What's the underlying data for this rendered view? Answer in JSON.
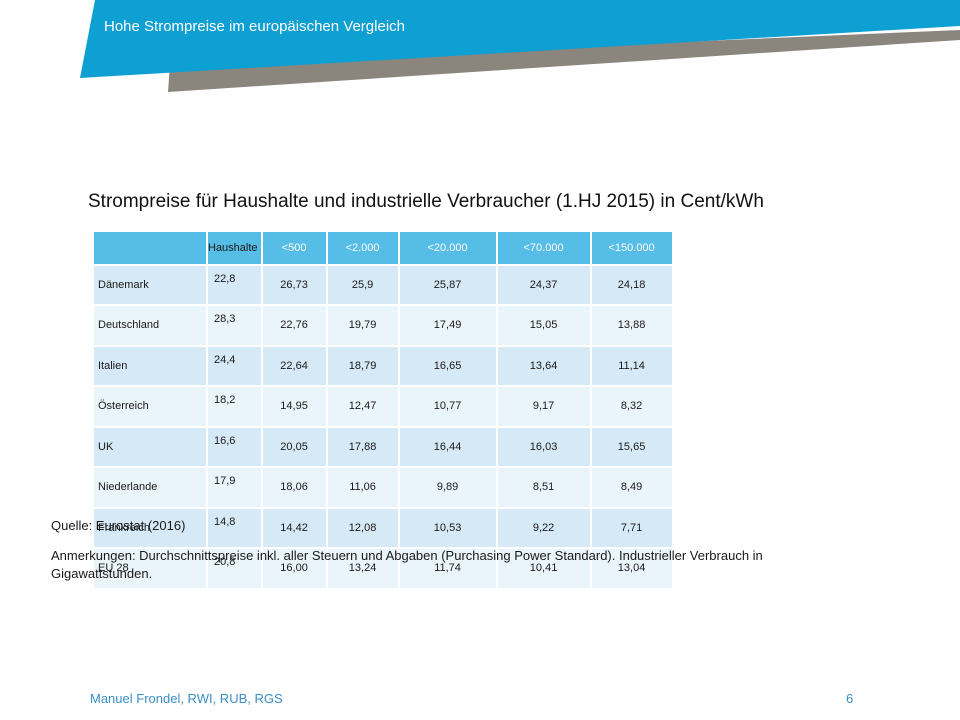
{
  "header": {
    "title": "Hohe Strompreise im europäischen Vergleich",
    "colors": {
      "blue": "#0e9fd3",
      "gray": "#8a857d"
    }
  },
  "heading": "Strompreise für Haushalte und industrielle Verbraucher (1.HJ 2015) in Cent/kWh",
  "table": {
    "header": [
      "",
      "Haushalte",
      "<500",
      "<2.000",
      "<20.000",
      "<70.000",
      "<150.000"
    ],
    "rows": [
      [
        "Dänemark",
        "22,8",
        "26,73",
        "25,9",
        "25,87",
        "24,37",
        "24,18"
      ],
      [
        "Deutschland",
        "28,3",
        "22,76",
        "19,79",
        "17,49",
        "15,05",
        "13,88"
      ],
      [
        "Italien",
        "24,4",
        "22,64",
        "18,79",
        "16,65",
        "13,64",
        "11,14"
      ],
      [
        "Österreich",
        "18,2",
        "14,95",
        "12,47",
        "10,77",
        "9,17",
        "8,32"
      ],
      [
        "UK",
        "16,6",
        "20,05",
        "17,88",
        "16,44",
        "16,03",
        "15,65"
      ],
      [
        "Niederlande",
        "17,9",
        "18,06",
        "11,06",
        "9,89",
        "8,51",
        "8,49"
      ],
      [
        "Frankreich",
        "14,8",
        "14,42",
        "12,08",
        "10,53",
        "9,22",
        "7,71"
      ],
      [
        "EU 28",
        "20,8",
        "16,00",
        "13,24",
        "11,74",
        "10,41",
        "13,04"
      ]
    ]
  },
  "source": "Quelle: Eurostat (2016)",
  "notes": "Anmerkungen: Durchschnittspreise inkl. aller Steuern und Abgaben (Purchasing Power Standard). Industrieller Verbrauch in Gigawattstunden.",
  "footer": {
    "author": "Manuel Frondel, RWI, RUB, RGS",
    "page": "6"
  }
}
